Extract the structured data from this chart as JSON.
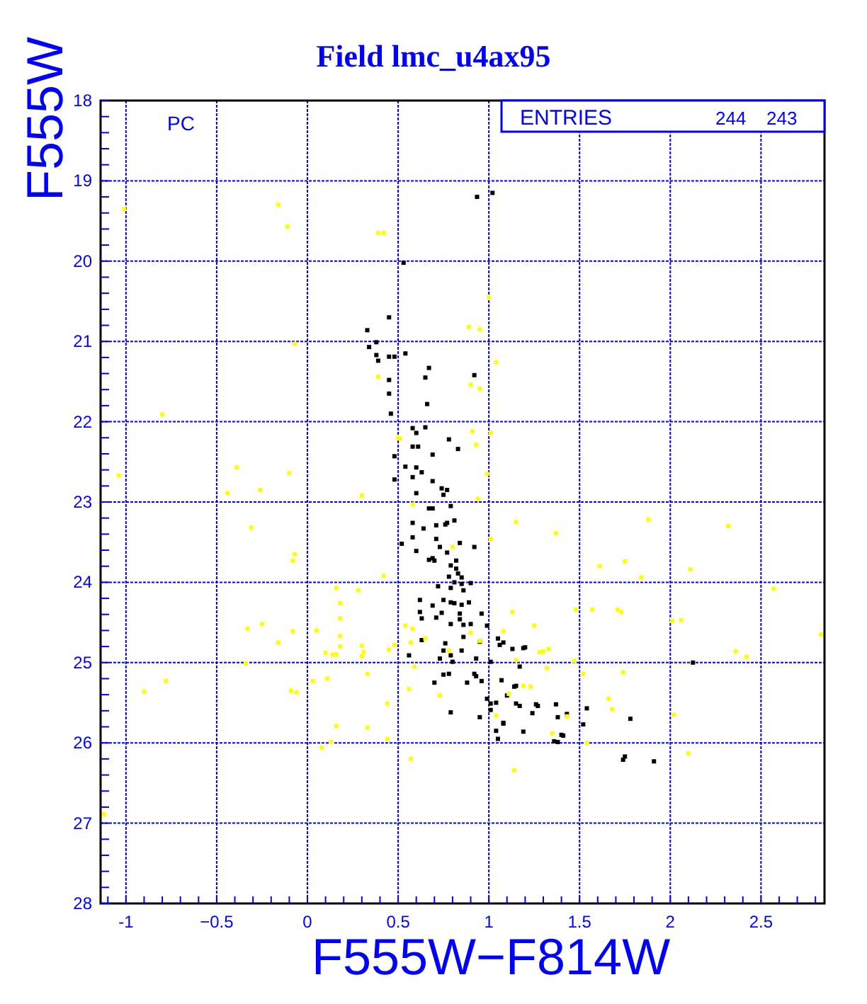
{
  "chart_data": {
    "type": "scatter",
    "title": "Field lmc_u4ax95",
    "xlabel": "F555W−F814W",
    "ylabel": "F555W",
    "annotations": [
      "PC",
      "ENTRIES",
      "244",
      "243"
    ],
    "xlim": [
      -1.14,
      2.85
    ],
    "ylim": [
      28,
      18
    ],
    "xticks": [
      {
        "value": -1.1,
        "label": null
      },
      -1,
      {
        "value": -0.9,
        "label": null
      },
      {
        "value": -0.8,
        "label": null
      },
      {
        "value": -0.7,
        "label": null
      },
      {
        "value": -0.6,
        "label": null
      },
      {
        "value": -0.5,
        "label": "−0.5"
      },
      {
        "value": -0.4,
        "label": null
      },
      {
        "value": -0.3,
        "label": null
      },
      {
        "value": -0.2,
        "label": null
      },
      {
        "value": -0.1,
        "label": null
      },
      0,
      {
        "value": 0.1,
        "label": null
      },
      {
        "value": 0.2,
        "label": null
      },
      {
        "value": 0.3,
        "label": null
      },
      {
        "value": 0.4,
        "label": null
      },
      0.5,
      {
        "value": 0.6,
        "label": null
      },
      {
        "value": 0.7,
        "label": null
      },
      {
        "value": 0.8,
        "label": null
      },
      {
        "value": 0.9,
        "label": null
      },
      1,
      {
        "value": 1.1,
        "label": null
      },
      {
        "value": 1.2,
        "label": null
      },
      {
        "value": 1.3,
        "label": null
      },
      {
        "value": 1.4,
        "label": null
      },
      1.5,
      {
        "value": 1.6,
        "label": null
      },
      {
        "value": 1.7,
        "label": null
      },
      {
        "value": 1.8,
        "label": null
      },
      {
        "value": 1.9,
        "label": null
      },
      2,
      {
        "value": 2.1,
        "label": null
      },
      {
        "value": 2.2,
        "label": null
      },
      {
        "value": 2.3,
        "label": null
      },
      {
        "value": 2.4,
        "label": null
      },
      2.5,
      {
        "value": 2.6,
        "label": null
      },
      {
        "value": 2.7,
        "label": null
      },
      {
        "value": 2.8,
        "label": null
      }
    ],
    "yticks": [
      18,
      {
        "value": 18.2,
        "label": null
      },
      {
        "value": 18.4,
        "label": null
      },
      {
        "value": 18.6,
        "label": null
      },
      {
        "value": 18.8,
        "label": null
      },
      19,
      {
        "value": 19.2,
        "label": null
      },
      {
        "value": 19.4,
        "label": null
      },
      {
        "value": 19.6,
        "label": null
      },
      {
        "value": 19.8,
        "label": null
      },
      20,
      {
        "value": 20.2,
        "label": null
      },
      {
        "value": 20.4,
        "label": null
      },
      {
        "value": 20.6,
        "label": null
      },
      {
        "value": 20.8,
        "label": null
      },
      21,
      {
        "value": 21.2,
        "label": null
      },
      {
        "value": 21.4,
        "label": null
      },
      {
        "value": 21.6,
        "label": null
      },
      {
        "value": 21.8,
        "label": null
      },
      22,
      {
        "value": 22.2,
        "label": null
      },
      {
        "value": 22.4,
        "label": null
      },
      {
        "value": 22.6,
        "label": null
      },
      {
        "value": 22.8,
        "label": null
      },
      23,
      {
        "value": 23.2,
        "label": null
      },
      {
        "value": 23.4,
        "label": null
      },
      {
        "value": 23.6,
        "label": null
      },
      {
        "value": 23.8,
        "label": null
      },
      24,
      {
        "value": 24.2,
        "label": null
      },
      {
        "value": 24.4,
        "label": null
      },
      {
        "value": 24.6,
        "label": null
      },
      {
        "value": 24.8,
        "label": null
      },
      25,
      {
        "value": 25.2,
        "label": null
      },
      {
        "value": 25.4,
        "label": null
      },
      {
        "value": 25.6,
        "label": null
      },
      {
        "value": 25.8,
        "label": null
      },
      26,
      {
        "value": 26.2,
        "label": null
      },
      {
        "value": 26.4,
        "label": null
      },
      {
        "value": 26.6,
        "label": null
      },
      {
        "value": 26.8,
        "label": null
      },
      27,
      {
        "value": 27.2,
        "label": null
      },
      {
        "value": 27.4,
        "label": null
      },
      {
        "value": 27.6,
        "label": null
      },
      {
        "value": 27.8,
        "label": null
      },
      28
    ],
    "grid": true,
    "marker": "square",
    "series": [
      {
        "color": "#000000",
        "x": [
          0.53,
          0.45,
          0.33,
          0.38,
          0.34,
          0.38,
          0.45,
          0.48,
          0.39,
          0.54,
          0.67,
          0.92,
          0.65,
          0.45,
          0.45,
          0.66,
          0.46,
          0.58,
          0.6,
          0.65,
          0.58,
          0.61,
          0.78,
          0.83,
          0.69,
          0.48,
          0.54,
          0.6,
          0.63,
          0.58,
          0.69,
          0.74,
          0.77,
          0.6,
          0.75,
          0.48,
          0.67,
          0.69,
          0.79,
          0.58,
          0.71,
          0.77,
          0.76,
          0.81,
          0.64,
          0.58,
          0.71,
          0.84,
          0.52,
          0.73,
          0.6,
          0.77,
          0.92,
          0.67,
          0.69,
          0.7,
          0.82,
          0.79,
          0.82,
          0.78,
          0.83,
          0.85,
          0.81,
          0.85,
          0.9,
          0.72,
          0.79,
          0.86,
          0.62,
          0.69,
          0.75,
          0.79,
          0.81,
          0.85,
          0.89,
          0.62,
          0.71,
          0.74,
          0.84,
          0.84,
          0.63,
          0.79,
          0.86,
          0.9,
          0.96,
          0.63,
          0.86,
          0.95,
          0.99,
          1.05,
          1.08,
          1.06,
          0.76,
          0.75,
          0.85,
          0.79,
          0.56,
          0.93,
          0.73,
          0.8,
          1.13,
          1.19,
          1.2,
          1.01,
          1.17,
          0.75,
          0.78,
          0.92,
          0.93,
          0.96,
          0.88,
          0.7,
          1.07,
          1.15,
          1.14,
          1.1,
          0.99,
          1.01,
          1.04,
          1.01,
          1.15,
          1.17,
          1.26,
          1.27,
          1.24,
          1.37,
          1.38,
          1.43,
          0.79,
          0.95,
          1.08,
          1.08,
          1.19,
          1.04,
          1.05,
          1.36,
          1.38,
          1.41,
          0.935,
          1.02,
          2.125,
          1.74,
          1.75,
          1.91,
          1.78,
          1.54,
          1.52,
          1.4
        ],
        "values": [
          20.02,
          20.7,
          20.86,
          21.01,
          21.07,
          21.17,
          21.19,
          21.19,
          21.24,
          21.15,
          21.33,
          21.42,
          21.45,
          21.48,
          21.65,
          21.78,
          21.9,
          22.08,
          22.14,
          22.07,
          22.31,
          22.31,
          22.22,
          22.34,
          22.41,
          22.43,
          22.56,
          22.57,
          22.63,
          22.69,
          22.74,
          22.83,
          22.85,
          22.89,
          22.91,
          22.72,
          23.08,
          23.08,
          23.05,
          23.26,
          23.29,
          23.26,
          23.28,
          23.23,
          23.33,
          23.44,
          23.46,
          23.51,
          23.52,
          23.56,
          23.61,
          23.63,
          23.56,
          23.72,
          23.7,
          23.73,
          23.73,
          23.79,
          23.83,
          23.93,
          23.89,
          23.94,
          24.0,
          24.02,
          24.01,
          24.05,
          24.07,
          24.1,
          24.22,
          24.29,
          24.22,
          24.25,
          24.26,
          24.28,
          24.25,
          24.37,
          24.44,
          24.38,
          24.39,
          24.46,
          24.45,
          24.52,
          24.53,
          24.52,
          24.39,
          24.72,
          24.68,
          24.74,
          24.54,
          24.7,
          24.75,
          24.78,
          24.76,
          24.85,
          24.85,
          24.91,
          24.91,
          24.95,
          24.95,
          24.99,
          24.83,
          24.82,
          24.81,
          24.99,
          25.05,
          25.15,
          25.14,
          25.14,
          25.17,
          25.23,
          25.25,
          25.25,
          25.22,
          25.29,
          25.3,
          25.41,
          25.45,
          25.51,
          25.5,
          25.59,
          25.51,
          25.54,
          25.52,
          25.54,
          25.63,
          25.52,
          25.68,
          25.64,
          25.62,
          25.68,
          25.75,
          25.76,
          25.86,
          25.85,
          25.95,
          25.98,
          25.99,
          25.91,
          19.2,
          19.15,
          25.0,
          26.21,
          26.17,
          26.23,
          25.7,
          25.57,
          25.77,
          25.9
        ]
      },
      {
        "color": "#ffff00",
        "x": [
          -1.01,
          -0.16,
          -0.11,
          0.39,
          0.42,
          -0.07,
          0.39,
          -0.8,
          0.5,
          1.0,
          0.89,
          0.95,
          1.04,
          0.9,
          0.95,
          0.91,
          1.01,
          0.93,
          -1.04,
          -0.39,
          -0.1,
          -0.44,
          -0.26,
          0.3,
          -0.31,
          -0.08,
          -0.07,
          0.42,
          0.16,
          0.28,
          0.18,
          0.18,
          0.18,
          0.18,
          -0.33,
          -0.25,
          -0.08,
          0.05,
          -0.16,
          0.1,
          0.14,
          0.16,
          0.3,
          0.31,
          0.3,
          0.45,
          0.48,
          -0.34,
          -0.78,
          -0.9,
          -0.09,
          -0.06,
          0.03,
          0.11,
          0.33,
          0.44,
          0.16,
          0.33,
          0.44,
          0.13,
          0.08,
          0.57,
          0.54,
          0.58,
          0.57,
          0.65,
          0.59,
          0.56,
          0.73,
          0.58,
          0.99,
          0.94,
          1.15,
          1.37,
          1.01,
          0.8,
          1.88,
          2.32,
          1.61,
          1.75,
          1.84,
          2.11,
          2.57,
          1.13,
          1.48,
          1.57,
          1.71,
          1.73,
          2.01,
          2.06,
          2.83,
          1.08,
          1.25,
          1.33,
          1.3,
          1.28,
          1.15,
          1.47,
          2.36,
          2.42,
          1.32,
          1.52,
          1.74,
          1.23,
          1.19,
          1.11,
          1.66,
          1.68,
          2.02,
          1.43,
          1.04,
          1.35,
          1.54,
          2.1,
          1.14,
          0.9,
          0.95,
          0.78,
          0.51,
          -1.12
        ],
        "values": [
          19.35,
          19.3,
          19.57,
          19.65,
          19.65,
          21.03,
          21.44,
          21.91,
          22.2,
          20.45,
          20.82,
          20.85,
          21.26,
          21.54,
          21.59,
          22.12,
          22.14,
          22.29,
          22.67,
          22.57,
          22.64,
          22.89,
          22.85,
          22.92,
          23.32,
          23.73,
          23.65,
          23.92,
          24.07,
          24.1,
          24.26,
          24.45,
          24.67,
          24.8,
          24.58,
          24.52,
          24.61,
          24.6,
          24.75,
          24.88,
          24.9,
          24.9,
          24.79,
          24.87,
          24.92,
          24.84,
          24.78,
          25.01,
          25.23,
          25.36,
          25.35,
          25.37,
          25.23,
          25.2,
          25.14,
          25.51,
          25.79,
          25.81,
          25.95,
          25.99,
          26.06,
          26.2,
          24.54,
          24.58,
          24.75,
          24.7,
          25.05,
          25.33,
          25.41,
          23.03,
          22.65,
          22.96,
          23.25,
          23.39,
          23.46,
          23.56,
          23.22,
          23.3,
          23.8,
          23.74,
          23.94,
          23.84,
          24.08,
          24.37,
          24.34,
          24.34,
          24.34,
          24.37,
          24.48,
          24.47,
          24.65,
          24.61,
          24.54,
          24.83,
          24.86,
          24.87,
          24.97,
          24.98,
          24.86,
          24.93,
          25.07,
          25.14,
          25.12,
          25.3,
          25.29,
          25.39,
          25.45,
          25.58,
          25.65,
          25.67,
          25.66,
          25.88,
          26.0,
          26.13,
          26.34,
          24.63,
          24.73,
          24.85,
          22.21,
          26.89
        ]
      }
    ]
  }
}
